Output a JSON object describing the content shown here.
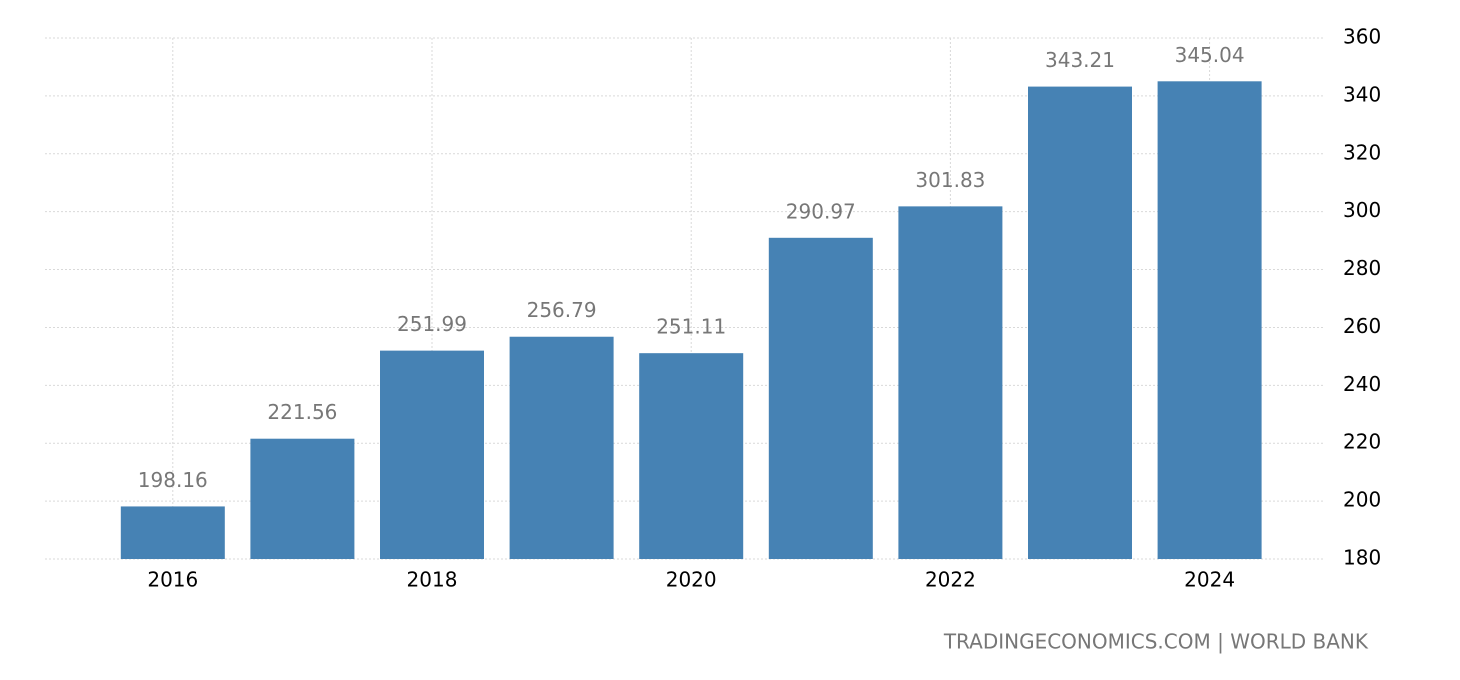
{
  "chart_data": {
    "type": "bar",
    "categories": [
      "2016",
      null,
      "2018",
      null,
      "2020",
      null,
      "2022",
      null,
      "2024"
    ],
    "values": [
      198.16,
      221.56,
      251.99,
      256.79,
      251.11,
      290.97,
      301.83,
      343.21,
      345.04
    ],
    "color": "#4682b4",
    "ylim": [
      180,
      360
    ],
    "yticks": [
      180,
      200,
      220,
      240,
      260,
      280,
      300,
      320,
      340,
      360
    ],
    "grid": true,
    "source": "TRADINGECONOMICS.COM | WORLD BANK"
  }
}
